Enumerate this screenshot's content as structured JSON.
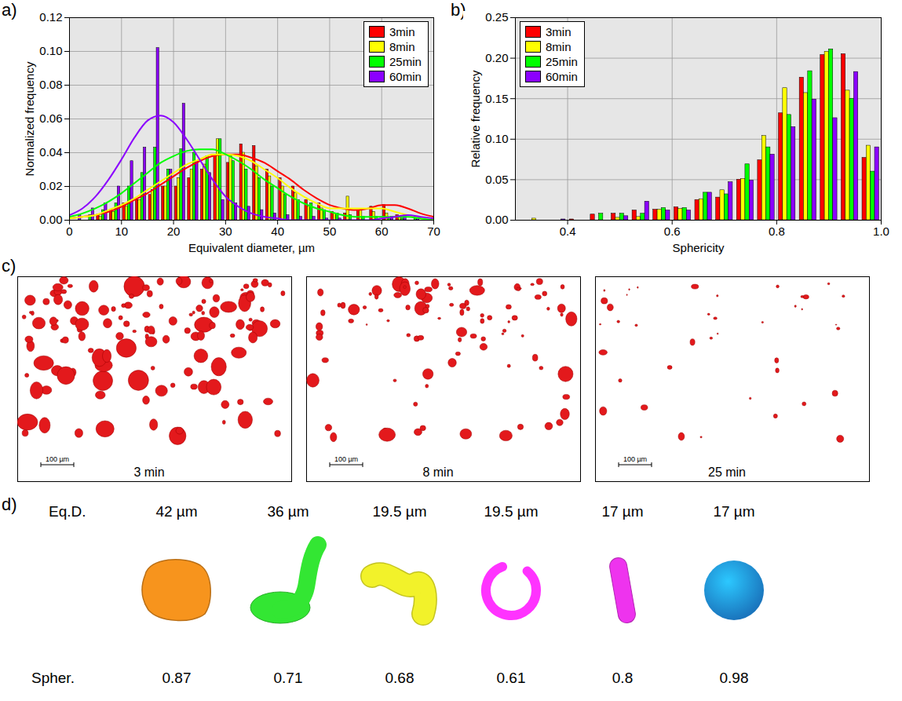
{
  "chart_data": [
    {
      "type": "histogram",
      "panel_label": "a)",
      "x_label": "Equivalent diameter, µm",
      "y_label": "Normalized frequency",
      "bins": [
        0,
        2.5,
        5,
        7.5,
        10,
        12.5,
        15,
        17.5,
        20,
        22.5,
        25,
        27.5,
        30,
        32.5,
        35,
        37.5,
        40,
        42.5,
        45,
        47.5,
        50,
        52.5,
        55,
        57.5,
        60,
        62.5,
        65,
        67.5,
        70
      ],
      "fit_x": [
        0,
        2.5,
        5,
        7.5,
        10,
        12.5,
        15,
        17.5,
        20,
        22.5,
        25,
        27.5,
        30,
        32.5,
        35,
        37.5,
        40,
        42.5,
        45,
        47.5,
        50,
        52.5,
        55,
        57.5,
        60,
        62.5,
        65,
        67.5,
        70
      ],
      "series": [
        {
          "name": "3min",
          "color": "#ff0000",
          "values": [
            0,
            0,
            0.003,
            0.006,
            0.01,
            0.012,
            0.015,
            0.02,
            0.02,
            0.025,
            0.03,
            0.038,
            0.034,
            0.045,
            0.044,
            0.03,
            0.025,
            0.02,
            0.012,
            0.01,
            0.005,
            0.004,
            0.006,
            0.008,
            0.009,
            0.003,
            0,
            0
          ],
          "fit_values": [
            0.001,
            0.002,
            0.003,
            0.005,
            0.008,
            0.012,
            0.016,
            0.021,
            0.026,
            0.031,
            0.035,
            0.038,
            0.039,
            0.039,
            0.037,
            0.034,
            0.029,
            0.024,
            0.018,
            0.013,
            0.009,
            0.007,
            0.006,
            0.007,
            0.009,
            0.009,
            0.007,
            0.004,
            0.002
          ]
        },
        {
          "name": "8min",
          "color": "#ffff00",
          "values": [
            0,
            0,
            0.002,
            0.005,
            0.008,
            0.012,
            0.018,
            0.02,
            0.025,
            0.03,
            0.033,
            0.048,
            0.038,
            0.04,
            0.032,
            0.026,
            0.02,
            0.016,
            0.008,
            0.007,
            0.004,
            0.014,
            0.006,
            0.005,
            0.004,
            0.002,
            0,
            0
          ],
          "fit_values": [
            0.001,
            0.002,
            0.003,
            0.006,
            0.009,
            0.013,
            0.018,
            0.023,
            0.028,
            0.033,
            0.036,
            0.039,
            0.039,
            0.038,
            0.035,
            0.03,
            0.025,
            0.019,
            0.014,
            0.01,
            0.007,
            0.007,
            0.007,
            0.007,
            0.007,
            0.005,
            0.003,
            0.001,
            0
          ]
        },
        {
          "name": "25min",
          "color": "#00ff00",
          "values": [
            0,
            0.003,
            0.006,
            0.01,
            0.02,
            0.028,
            0.043,
            0.03,
            0.042,
            0.04,
            0.038,
            0.048,
            0.035,
            0.03,
            0.025,
            0.02,
            0.015,
            0.012,
            0.01,
            0.006,
            0.004,
            0.003,
            0.002,
            0.002,
            0.001,
            0.001,
            0.002,
            0
          ],
          "fit_values": [
            0.002,
            0.004,
            0.007,
            0.011,
            0.016,
            0.022,
            0.028,
            0.034,
            0.038,
            0.041,
            0.042,
            0.042,
            0.039,
            0.035,
            0.03,
            0.024,
            0.019,
            0.014,
            0.01,
            0.007,
            0.005,
            0.003,
            0.002,
            0.002,
            0.002,
            0.002,
            0.002,
            0.001,
            0
          ]
        },
        {
          "name": "60min",
          "color": "#8b00ff",
          "values": [
            0.003,
            0.007,
            0.01,
            0.02,
            0.035,
            0.043,
            0.102,
            0.03,
            0.069,
            0.035,
            0.028,
            0.012,
            0.01,
            0.008,
            0.006,
            0.004,
            0.003,
            0.002,
            0.002,
            0.001,
            0.001,
            0,
            0,
            0,
            0.002,
            0.003,
            0.002,
            0
          ],
          "fit_values": [
            0.003,
            0.007,
            0.014,
            0.024,
            0.036,
            0.049,
            0.059,
            0.062,
            0.058,
            0.048,
            0.036,
            0.024,
            0.014,
            0.008,
            0.004,
            0.002,
            0.001,
            0,
            0,
            0,
            0,
            0,
            0,
            0,
            0.001,
            0.002,
            0.003,
            0.002,
            0.001
          ]
        }
      ],
      "xlim": [
        0,
        70
      ],
      "xticks": [
        0,
        10,
        20,
        30,
        40,
        50,
        60,
        70
      ],
      "ylim": [
        0,
        0.12
      ],
      "yticks": [
        {
          "value": 0,
          "label": "0.00"
        },
        {
          "value": 0.02,
          "label": "0.02"
        },
        {
          "value": 0.04,
          "label": "0.04"
        },
        {
          "value": 0.06,
          "label": "0.06"
        },
        {
          "value": 0.08,
          "label": "0.08"
        },
        {
          "value": 0.1,
          "label": "0.10"
        },
        {
          "value": 0.12,
          "label": "0.12"
        }
      ],
      "grid": true,
      "legend": "top-right"
    },
    {
      "type": "histogram",
      "panel_label": "b)",
      "x_label": "Sphericity",
      "y_label": "Relative frequency",
      "bins": [
        0.32,
        0.36,
        0.4,
        0.44,
        0.48,
        0.52,
        0.56,
        0.6,
        0.64,
        0.68,
        0.72,
        0.76,
        0.8,
        0.84,
        0.88,
        0.92,
        0.96,
        1.0
      ],
      "series": [
        {
          "name": "3min",
          "color": "#ff0000",
          "values": [
            0,
            0,
            0.001,
            0.007,
            0.008,
            0.012,
            0.013,
            0.016,
            0.025,
            0.028,
            0.05,
            0.074,
            0.132,
            0.176,
            0.204,
            0.205,
            0.077
          ]
        },
        {
          "name": "8min",
          "color": "#ffff00",
          "values": [
            0.002,
            0,
            0,
            0,
            0.003,
            0.004,
            0.013,
            0.014,
            0.026,
            0.037,
            0.051,
            0.104,
            0.163,
            0.157,
            0.208,
            0.16,
            0.092
          ]
        },
        {
          "name": "25min",
          "color": "#00ff00",
          "values": [
            0,
            0,
            0,
            0.008,
            0.008,
            0.008,
            0.015,
            0.015,
            0.034,
            0.032,
            0.069,
            0.09,
            0.13,
            0.184,
            0.211,
            0.15,
            0.06
          ]
        },
        {
          "name": "60min",
          "color": "#8b00ff",
          "values": [
            0,
            0.001,
            0,
            0,
            0.005,
            0.023,
            0.012,
            0.012,
            0.034,
            0.047,
            0.049,
            0.081,
            0.115,
            0.149,
            0.126,
            0.183,
            0.09
          ]
        }
      ],
      "xlim": [
        0.3,
        1.0
      ],
      "xticks": [
        0.4,
        0.6,
        0.8,
        {
          "value": 1,
          "label": "1.0"
        }
      ],
      "ylim": [
        0,
        0.25
      ],
      "yticks": [
        {
          "value": 0,
          "label": "0.00"
        },
        {
          "value": 0.05,
          "label": "0.05"
        },
        {
          "value": 0.1,
          "label": "0.10"
        },
        {
          "value": 0.15,
          "label": "0.15"
        },
        {
          "value": 0.2,
          "label": "0.20"
        },
        {
          "value": 0.25,
          "label": "0.25"
        }
      ],
      "grid": true,
      "legend": "top-left"
    }
  ],
  "panel_c": {
    "panel_label": "c)",
    "panels": [
      {
        "label": "3 min",
        "scale_bar": "100 µm"
      },
      {
        "label": "8 min",
        "scale_bar": "100 µm"
      },
      {
        "label": "25 min",
        "scale_bar": "100 µm"
      }
    ]
  },
  "panel_d": {
    "panel_label": "d)",
    "row_labels": [
      "Eq.D.",
      "Spher."
    ],
    "items": [
      {
        "eq_d": "42 µm",
        "sphericity": "0.87",
        "color": "#f7941d"
      },
      {
        "eq_d": "36 µm",
        "sphericity": "0.71",
        "color": "#33e633"
      },
      {
        "eq_d": "19.5 µm",
        "sphericity": "0.68",
        "color": "#f2f22a"
      },
      {
        "eq_d": "19.5 µm",
        "sphericity": "0.61",
        "color": "#ff33ff"
      },
      {
        "eq_d": "17 µm",
        "sphericity": "0.8",
        "color": "#ee33ee"
      },
      {
        "eq_d": "17 µm",
        "sphericity": "0.98",
        "color": "#2196f3"
      }
    ]
  }
}
